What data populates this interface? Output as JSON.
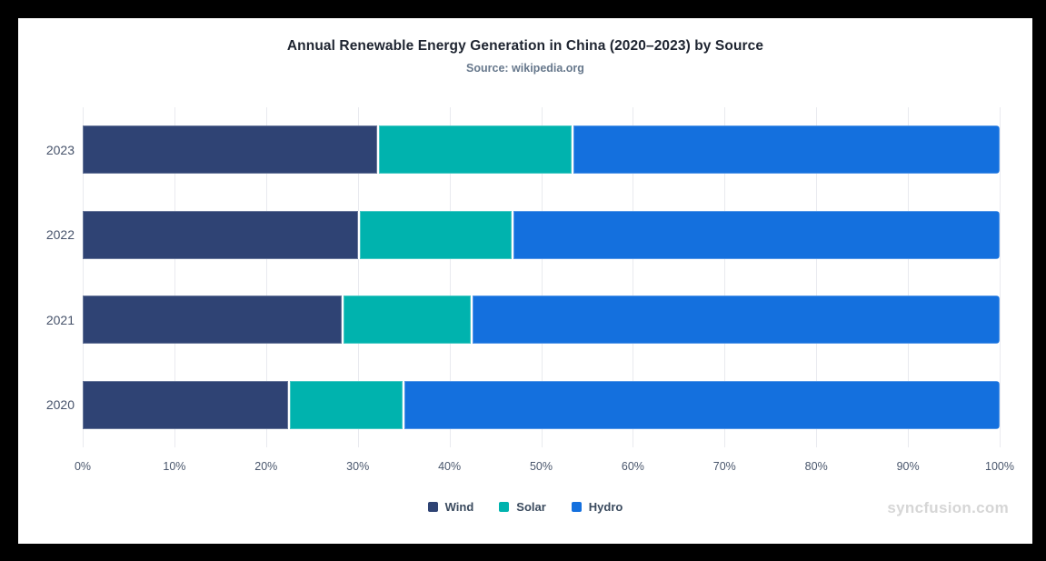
{
  "header": {
    "title": "Annual Renewable Energy Generation in China (2020–2023) by Source",
    "subtitle": "Source: wikipedia.org"
  },
  "chart_data": {
    "type": "bar",
    "subtype": "horizontal-100-percent-stacked",
    "title": "Annual Renewable Energy Generation in China (2020–2023) by Source",
    "subtitle": "Source: wikipedia.org",
    "categories": [
      "2023",
      "2022",
      "2021",
      "2020"
    ],
    "series": [
      {
        "name": "Wind",
        "color": "#2F4374",
        "values": [
          32.1,
          30.0,
          28.2,
          22.4
        ]
      },
      {
        "name": "Solar",
        "color": "#00B3AE",
        "values": [
          21.2,
          16.8,
          14.1,
          12.5
        ]
      },
      {
        "name": "Hydro",
        "color": "#1470DE",
        "values": [
          46.7,
          53.2,
          57.7,
          65.1
        ]
      }
    ],
    "xlabel": "",
    "ylabel": "",
    "x_axis": {
      "ticks": [
        "0%",
        "10%",
        "20%",
        "30%",
        "40%",
        "50%",
        "60%",
        "70%",
        "80%",
        "90%",
        "100%"
      ],
      "range": [
        0,
        100
      ]
    },
    "grid": "vertical-only",
    "legend_position": "bottom-center"
  },
  "legend": {
    "items": [
      {
        "label": "Wind",
        "color": "#2F4374"
      },
      {
        "label": "Solar",
        "color": "#00B3AE"
      },
      {
        "label": "Hydro",
        "color": "#1470DE"
      }
    ]
  },
  "watermark": "syncfusion.com",
  "colors": {
    "frame": "#000000",
    "background": "#FFFFFF",
    "grid": "#E9EAEF",
    "title": "#1E2430",
    "subtitle": "#67788C",
    "axis_text": "#49566C",
    "legend_text": "#3A4A5E",
    "watermark": "#D6D6D6"
  }
}
